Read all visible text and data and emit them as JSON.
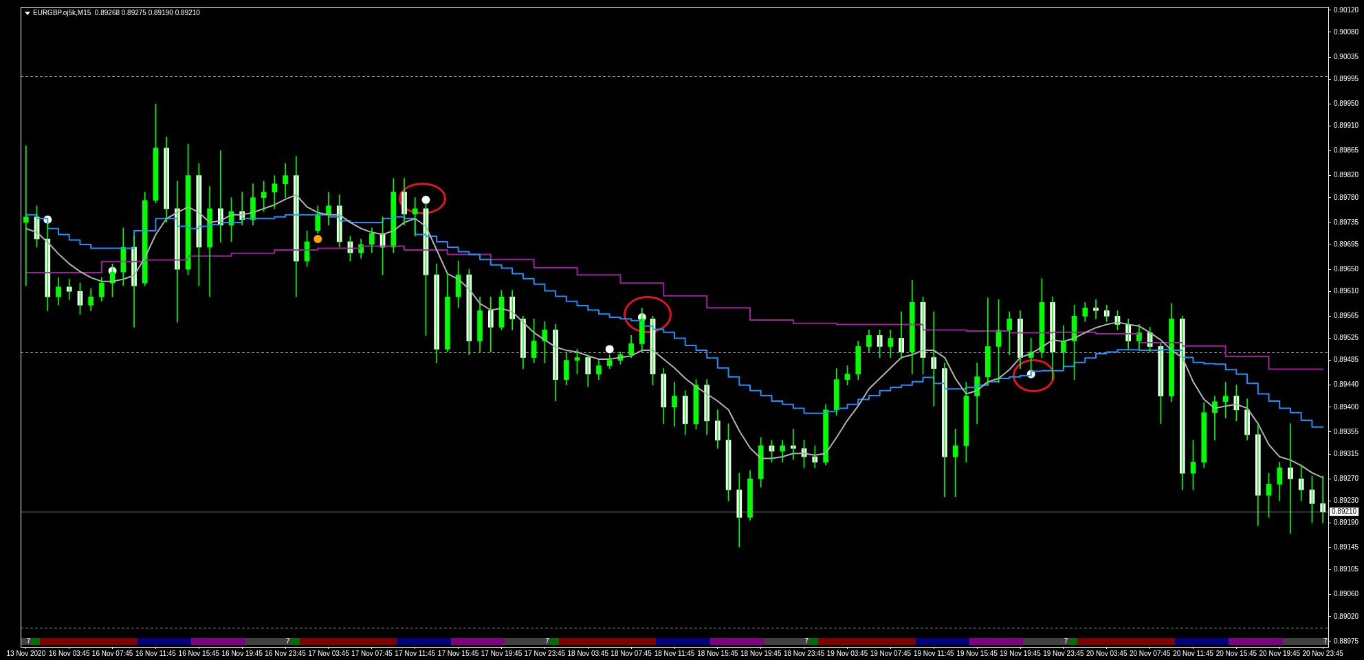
{
  "chart_data": {
    "type": "candlestick",
    "title": "EURGBP.oj5k,M15  0.89268 0.89275 0.89190 0.89210",
    "categories": [
      "13 Nov 2020",
      null,
      null,
      null,
      "16 Nov 03:45",
      null,
      null,
      null,
      "16 Nov 07:45",
      null,
      null,
      null,
      "16 Nov 11:45",
      null,
      null,
      null,
      "16 Nov 15:45",
      null,
      null,
      null,
      "16 Nov 19:45",
      null,
      null,
      null,
      "16 Nov 23:45",
      null,
      null,
      null,
      "17 Nov 03:45",
      null,
      null,
      null,
      "17 Nov 07:45",
      null,
      null,
      null,
      "17 Nov 11:45",
      null,
      null,
      null,
      "17 Nov 15:45",
      null,
      null,
      null,
      "17 Nov 19:45",
      null,
      null,
      null,
      "17 Nov 23:45",
      null,
      null,
      null,
      "18 Nov 03:45",
      null,
      null,
      null,
      "18 Nov 07:45",
      null,
      null,
      null,
      "18 Nov 11:45",
      null,
      null,
      null,
      "18 Nov 15:45",
      null,
      null,
      null,
      "18 Nov 19:45",
      null,
      null,
      null,
      "18 Nov 23:45",
      null,
      null,
      null,
      "19 Nov 03:45",
      null,
      null,
      null,
      "19 Nov 07:45",
      null,
      null,
      null,
      "19 Nov 11:45",
      null,
      null,
      null,
      "19 Nov 15:45",
      null,
      null,
      null,
      "19 Nov 19:45",
      null,
      null,
      null,
      "19 Nov 23:45",
      null,
      null,
      null,
      "20 Nov 03:45",
      null,
      null,
      null,
      "20 Nov 07:45",
      null,
      null,
      null,
      "20 Nov 11:45",
      null,
      null,
      null,
      "20 Nov 15:45",
      null,
      null,
      null,
      "20 Nov 19:45",
      null,
      null,
      null,
      "20 Nov 23:45"
    ],
    "ohlc": [
      [
        0.89735,
        0.89874,
        0.8962,
        0.89745
      ],
      [
        0.89745,
        0.89765,
        0.8969,
        0.89705
      ],
      [
        0.89705,
        0.89735,
        0.89575,
        0.896
      ],
      [
        0.896,
        0.89635,
        0.89585,
        0.89618
      ],
      [
        0.89618,
        0.89632,
        0.89595,
        0.8961
      ],
      [
        0.8961,
        0.89625,
        0.89568,
        0.89585
      ],
      [
        0.89585,
        0.89615,
        0.89575,
        0.896
      ],
      [
        0.896,
        0.89635,
        0.89592,
        0.89625
      ],
      [
        0.89625,
        0.8966,
        0.896,
        0.89645
      ],
      [
        0.89645,
        0.89725,
        0.8962,
        0.8969
      ],
      [
        0.8969,
        0.8971,
        0.89545,
        0.8962
      ],
      [
        0.89625,
        0.8979,
        0.8962,
        0.89775
      ],
      [
        0.89775,
        0.8995,
        0.8977,
        0.8987
      ],
      [
        0.8987,
        0.8989,
        0.89735,
        0.8976
      ],
      [
        0.8976,
        0.8981,
        0.89554,
        0.8965
      ],
      [
        0.8965,
        0.89877,
        0.8964,
        0.8982
      ],
      [
        0.8982,
        0.89842,
        0.8962,
        0.8969
      ],
      [
        0.8969,
        0.898,
        0.896,
        0.8976
      ],
      [
        0.8976,
        0.89865,
        0.89699,
        0.8973
      ],
      [
        0.8973,
        0.8978,
        0.897,
        0.89755
      ],
      [
        0.89755,
        0.8979,
        0.8973,
        0.8974
      ],
      [
        0.8974,
        0.89805,
        0.8973,
        0.8978
      ],
      [
        0.8978,
        0.8981,
        0.89755,
        0.8979
      ],
      [
        0.8979,
        0.8982,
        0.8976,
        0.89805
      ],
      [
        0.89805,
        0.89842,
        0.8978,
        0.8982
      ],
      [
        0.8982,
        0.89855,
        0.896,
        0.89665
      ],
      [
        0.89665,
        0.8972,
        0.89655,
        0.897
      ],
      [
        0.8972,
        0.89765,
        0.89715,
        0.8975
      ],
      [
        0.8975,
        0.8979,
        0.8973,
        0.89765
      ],
      [
        0.89765,
        0.89785,
        0.8969,
        0.897
      ],
      [
        0.897,
        0.8971,
        0.89665,
        0.8968
      ],
      [
        0.8968,
        0.89705,
        0.8967,
        0.89695
      ],
      [
        0.89695,
        0.89725,
        0.8968,
        0.89715
      ],
      [
        0.89715,
        0.89745,
        0.8964,
        0.8969
      ],
      [
        0.8969,
        0.89815,
        0.8968,
        0.8979
      ],
      [
        0.8979,
        0.89815,
        0.8973,
        0.8975
      ],
      [
        0.8975,
        0.8978,
        0.8971,
        0.8976
      ],
      [
        0.8976,
        0.8977,
        0.8953,
        0.8964
      ],
      [
        0.8964,
        0.8966,
        0.8948,
        0.89505
      ],
      [
        0.89505,
        0.8964,
        0.895,
        0.896
      ],
      [
        0.896,
        0.89665,
        0.8958,
        0.8964
      ],
      [
        0.8964,
        0.8965,
        0.89495,
        0.8952
      ],
      [
        0.8952,
        0.896,
        0.895,
        0.89575
      ],
      [
        0.89575,
        0.896,
        0.895,
        0.89545
      ],
      [
        0.89545,
        0.89612,
        0.8954,
        0.896
      ],
      [
        0.896,
        0.89612,
        0.8954,
        0.8956
      ],
      [
        0.8956,
        0.89565,
        0.8947,
        0.8949
      ],
      [
        0.8949,
        0.8956,
        0.8948,
        0.8952
      ],
      [
        0.8952,
        0.89555,
        0.8948,
        0.8954
      ],
      [
        0.8954,
        0.8955,
        0.89411,
        0.8945
      ],
      [
        0.8945,
        0.895,
        0.8944,
        0.89485
      ],
      [
        0.89485,
        0.89505,
        0.8946,
        0.8949
      ],
      [
        0.8949,
        0.89495,
        0.89437,
        0.8946
      ],
      [
        0.8946,
        0.89485,
        0.8945,
        0.89475
      ],
      [
        0.89475,
        0.89495,
        0.8947,
        0.89485
      ],
      [
        0.89485,
        0.895,
        0.89478,
        0.89495
      ],
      [
        0.89495,
        0.8953,
        0.8949,
        0.89515
      ],
      [
        0.89515,
        0.8958,
        0.895,
        0.8956
      ],
      [
        0.8956,
        0.89565,
        0.8944,
        0.8946
      ],
      [
        0.8946,
        0.8947,
        0.8937,
        0.894
      ],
      [
        0.894,
        0.89445,
        0.89365,
        0.8942
      ],
      [
        0.8942,
        0.8943,
        0.8935,
        0.8937
      ],
      [
        0.8937,
        0.8945,
        0.8936,
        0.8944
      ],
      [
        0.8944,
        0.8945,
        0.8935,
        0.89375
      ],
      [
        0.89375,
        0.89395,
        0.89325,
        0.8934
      ],
      [
        0.8934,
        0.8937,
        0.8923,
        0.8925
      ],
      [
        0.8925,
        0.8928,
        0.89146,
        0.892
      ],
      [
        0.892,
        0.89285,
        0.89195,
        0.8927
      ],
      [
        0.8927,
        0.89345,
        0.89255,
        0.8933
      ],
      [
        0.8933,
        0.8934,
        0.893,
        0.8932
      ],
      [
        0.8932,
        0.8934,
        0.893,
        0.8933
      ],
      [
        0.8933,
        0.8936,
        0.89305,
        0.89325
      ],
      [
        0.89325,
        0.8934,
        0.8929,
        0.8931
      ],
      [
        0.8931,
        0.8933,
        0.8929,
        0.893
      ],
      [
        0.893,
        0.89405,
        0.89295,
        0.89395
      ],
      [
        0.89395,
        0.8947,
        0.89385,
        0.8945
      ],
      [
        0.8945,
        0.89475,
        0.8944,
        0.8946
      ],
      [
        0.8946,
        0.8952,
        0.8945,
        0.8951
      ],
      [
        0.8951,
        0.8954,
        0.895,
        0.8953
      ],
      [
        0.8953,
        0.8954,
        0.8949,
        0.8951
      ],
      [
        0.8951,
        0.8954,
        0.8949,
        0.89525
      ],
      [
        0.89525,
        0.89573,
        0.89488,
        0.895
      ],
      [
        0.895,
        0.8963,
        0.8946,
        0.8959
      ],
      [
        0.8959,
        0.896,
        0.8946,
        0.8949
      ],
      [
        0.8949,
        0.89573,
        0.89402,
        0.8947
      ],
      [
        0.8947,
        0.8948,
        0.89237,
        0.8931
      ],
      [
        0.8931,
        0.8936,
        0.89237,
        0.8933
      ],
      [
        0.8933,
        0.89445,
        0.893,
        0.8942
      ],
      [
        0.8942,
        0.8948,
        0.8937,
        0.89455
      ],
      [
        0.89455,
        0.89598,
        0.8944,
        0.8951
      ],
      [
        0.8951,
        0.89595,
        0.89445,
        0.8954
      ],
      [
        0.8954,
        0.89573,
        0.89495,
        0.8956
      ],
      [
        0.8956,
        0.89575,
        0.8947,
        0.8949
      ],
      [
        0.8949,
        0.89525,
        0.89465,
        0.895
      ],
      [
        0.895,
        0.89633,
        0.8949,
        0.8959
      ],
      [
        0.8959,
        0.896,
        0.8945,
        0.895
      ],
      [
        0.895,
        0.89548,
        0.8947,
        0.8952
      ],
      [
        0.8952,
        0.89585,
        0.8945,
        0.89565
      ],
      [
        0.89565,
        0.8959,
        0.89555,
        0.8958
      ],
      [
        0.8958,
        0.89595,
        0.8956,
        0.89575
      ],
      [
        0.89575,
        0.89585,
        0.89555,
        0.89565
      ],
      [
        0.89565,
        0.89575,
        0.8954,
        0.8955
      ],
      [
        0.8955,
        0.8956,
        0.89505,
        0.8952
      ],
      [
        0.8952,
        0.8955,
        0.89505,
        0.89535
      ],
      [
        0.89535,
        0.89545,
        0.895,
        0.8951
      ],
      [
        0.8951,
        0.89515,
        0.8937,
        0.8942
      ],
      [
        0.8942,
        0.89588,
        0.8941,
        0.8956
      ],
      [
        0.8956,
        0.89565,
        0.8925,
        0.8928
      ],
      [
        0.8928,
        0.8934,
        0.8925,
        0.893
      ],
      [
        0.893,
        0.89408,
        0.8929,
        0.8939
      ],
      [
        0.8939,
        0.8942,
        0.8934,
        0.8941
      ],
      [
        0.8941,
        0.89445,
        0.8938,
        0.8942
      ],
      [
        0.8942,
        0.8944,
        0.89375,
        0.89395
      ],
      [
        0.89395,
        0.89415,
        0.8934,
        0.8935
      ],
      [
        0.8935,
        0.8937,
        0.89185,
        0.8924
      ],
      [
        0.8924,
        0.8928,
        0.892,
        0.8926
      ],
      [
        0.8926,
        0.893,
        0.8923,
        0.8929
      ],
      [
        0.8929,
        0.8937,
        0.89171,
        0.8927
      ],
      [
        0.8927,
        0.89295,
        0.8923,
        0.8925
      ],
      [
        0.8925,
        0.89275,
        0.8919,
        0.89225
      ],
      [
        0.89225,
        0.89275,
        0.8919,
        0.8921
      ]
    ],
    "color": "#00ff00",
    "colors": [
      "#00ff00",
      "#ffffff",
      "#ffffff",
      "#00ff00",
      "#ffffff",
      "#ffffff",
      "#00ff00",
      "#00ff00",
      "#00ff00",
      "#00ff00",
      "#ffffff",
      "#00ff00",
      "#00ff00",
      "#ffffff",
      "#ffffff",
      "#00ff00",
      "#ffffff",
      "#00ff00",
      "#ffffff",
      "#00ff00",
      "#ffffff",
      "#00ff00",
      "#00ff00",
      "#00ff00",
      "#00ff00",
      "#ffffff",
      "#00ff00",
      "#00ff00",
      "#00ff00",
      "#ffffff",
      "#ffffff",
      "#00ff00",
      "#00ff00",
      "#ffffff",
      "#00ff00",
      "#ffffff",
      "#00ff00",
      "#ffffff",
      "#ffffff",
      "#00ff00",
      "#00ff00",
      "#ffffff",
      "#00ff00",
      "#ffffff",
      "#00ff00",
      "#ffffff",
      "#ffffff",
      "#00ff00",
      "#00ff00",
      "#ffffff",
      "#00ff00",
      "#00ff00",
      "#ffffff",
      "#00ff00",
      "#00ff00",
      "#00ff00",
      "#00ff00",
      "#00ff00",
      "#ffffff",
      "#ffffff",
      "#00ff00",
      "#ffffff",
      "#00ff00",
      "#ffffff",
      "#ffffff",
      "#ffffff",
      "#ffffff",
      "#00ff00",
      "#00ff00",
      "#ffffff",
      "#00ff00",
      "#ffffff",
      "#ffffff",
      "#ffffff",
      "#00ff00",
      "#00ff00",
      "#00ff00",
      "#00ff00",
      "#00ff00",
      "#ffffff",
      "#00ff00",
      "#ffffff",
      "#00ff00",
      "#ffffff",
      "#ffffff",
      "#ffffff",
      "#00ff00",
      "#00ff00",
      "#00ff00",
      "#00ff00",
      "#00ff00",
      "#00ff00",
      "#ffffff",
      "#00ff00",
      "#00ff00",
      "#ffffff",
      "#00ff00",
      "#00ff00",
      "#00ff00",
      "#ffffff",
      "#ffffff",
      "#ffffff",
      "#ffffff",
      "#00ff00",
      "#ffffff",
      "#ffffff",
      "#00ff00",
      "#ffffff",
      "#00ff00",
      "#00ff00",
      "#00ff00",
      "#00ff00",
      "#ffffff",
      "#ffffff",
      "#ffffff",
      "#00ff00",
      "#00ff00",
      "#ffffff",
      "#ffffff",
      "#ffffff",
      "#ffffff"
    ],
    "series": [
      {
        "type": "line",
        "color": "#b4b4b4",
        "values": [
          0.89724,
          0.89717,
          0.89699,
          0.89678,
          0.8966,
          0.89646,
          0.89635,
          0.89628,
          0.89628,
          0.89632,
          0.89639,
          0.89671,
          0.89713,
          0.89742,
          0.89753,
          0.89763,
          0.89753,
          0.89735,
          0.89738,
          0.89749,
          0.89749,
          0.89753,
          0.8976,
          0.89767,
          0.89777,
          0.89785,
          0.89763,
          0.89753,
          0.89749,
          0.89749,
          0.89735,
          0.89724,
          0.89717,
          0.89713,
          0.8972,
          0.89735,
          0.89742,
          0.89728,
          0.89685,
          0.89642,
          0.89632,
          0.89614,
          0.89588,
          0.89576,
          0.89579,
          0.89573,
          0.89554,
          0.89535,
          0.89522,
          0.89509,
          0.89503,
          0.895,
          0.89493,
          0.89487,
          0.89487,
          0.8949,
          0.89493,
          0.89503,
          0.89503,
          0.89487,
          0.89471,
          0.89452,
          0.89437,
          0.89424,
          0.89411,
          0.89395,
          0.89357,
          0.89326,
          0.89307,
          0.89307,
          0.8931,
          0.89316,
          0.89316,
          0.89313,
          0.89316,
          0.89345,
          0.89376,
          0.89402,
          0.89433,
          0.89452,
          0.89471,
          0.8949,
          0.89495,
          0.89503,
          0.89503,
          0.8949,
          0.89452,
          0.89424,
          0.8943,
          0.89446,
          0.89452,
          0.89468,
          0.8949,
          0.89497,
          0.89509,
          0.89522,
          0.89519,
          0.89525,
          0.89535,
          0.89544,
          0.8955,
          0.89554,
          0.8955,
          0.89547,
          0.89535,
          0.89522,
          0.89503,
          0.8949,
          0.89446,
          0.89414,
          0.89398,
          0.89402,
          0.89405,
          0.89398,
          0.8937,
          0.89332,
          0.8931,
          0.89304,
          0.89294,
          0.89281,
          0.89272
        ]
      },
      {
        "type": "step",
        "color": "#1e90ff",
        "values": [
          0.89749,
          0.89749,
          0.89742,
          0.89724,
          0.89713,
          0.89703,
          0.89695,
          0.89688,
          0.89688,
          0.89688,
          0.89688,
          0.8972,
          0.8972,
          0.89742,
          0.89742,
          0.89728,
          0.89724,
          0.89728,
          0.89731,
          0.89735,
          0.89735,
          0.89742,
          0.89742,
          0.89742,
          0.89745,
          0.89749,
          0.89749,
          0.89749,
          0.89749,
          0.89745,
          0.89738,
          0.89735,
          0.89735,
          0.89735,
          0.89742,
          0.89745,
          0.89742,
          0.89713,
          0.8971,
          0.897,
          0.8969,
          0.89682,
          0.89677,
          0.89668,
          0.89658,
          0.89652,
          0.89642,
          0.89633,
          0.89623,
          0.89611,
          0.89601,
          0.89592,
          0.89584,
          0.89576,
          0.89569,
          0.89563,
          0.8956,
          0.89557,
          0.89547,
          0.89541,
          0.89536,
          0.89525,
          0.89512,
          0.89503,
          0.89489,
          0.89471,
          0.89455,
          0.8944,
          0.8943,
          0.89421,
          0.89411,
          0.89405,
          0.89398,
          0.89389,
          0.89389,
          0.89392,
          0.89398,
          0.89405,
          0.89414,
          0.89421,
          0.8943,
          0.89436,
          0.8944,
          0.89446,
          0.89454,
          0.89443,
          0.89433,
          0.89433,
          0.89436,
          0.8944,
          0.89446,
          0.89452,
          0.89455,
          0.89457,
          0.89465,
          0.89466,
          0.89466,
          0.89474,
          0.89481,
          0.89489,
          0.89497,
          0.895,
          0.89504,
          0.89504,
          0.89503,
          0.89503,
          0.89504,
          0.89503,
          0.8949,
          0.89481,
          0.89479,
          0.89478,
          0.89468,
          0.8946,
          0.89443,
          0.89424,
          0.89411,
          0.89398,
          0.8939,
          0.89376,
          0.89364
        ]
      },
      {
        "type": "step",
        "color": "#a020a0",
        "values": [
          0.89644,
          0.89644,
          0.89644,
          0.89644,
          0.89644,
          0.89644,
          0.89644,
          0.89644,
          0.89664,
          0.89664,
          0.89664,
          0.89664,
          0.89667,
          0.89667,
          0.89667,
          0.89667,
          0.89674,
          0.89674,
          0.89674,
          0.89674,
          0.89679,
          0.89679,
          0.89679,
          0.89679,
          0.89685,
          0.89685,
          0.89685,
          0.89685,
          0.89688,
          0.89688,
          0.89688,
          0.89688,
          0.89692,
          0.89692,
          0.89692,
          0.89692,
          0.89685,
          0.89685,
          0.89685,
          0.89685,
          0.89677,
          0.89677,
          0.89677,
          0.89677,
          0.89668,
          0.89668,
          0.89668,
          0.89668,
          0.89653,
          0.89653,
          0.89653,
          0.89653,
          0.8964,
          0.8964,
          0.8964,
          0.8964,
          0.89625,
          0.89625,
          0.89625,
          0.89625,
          0.89602,
          0.89602,
          0.89602,
          0.89602,
          0.8958,
          0.8958,
          0.8958,
          0.8958,
          0.89558,
          0.89558,
          0.89558,
          0.89558,
          0.89552,
          0.89552,
          0.89552,
          0.89552,
          0.8955,
          0.8955,
          0.8955,
          0.8955,
          0.8955,
          0.8955,
          0.8955,
          0.8955,
          0.8954,
          0.8954,
          0.8954,
          0.8954,
          0.89538,
          0.89538,
          0.89538,
          0.89538,
          0.89535,
          0.89535,
          0.89535,
          0.89535,
          0.89536,
          0.89536,
          0.89536,
          0.89536,
          0.89533,
          0.89533,
          0.89533,
          0.89533,
          0.89517,
          0.89517,
          0.89517,
          0.89517,
          0.89511,
          0.89511,
          0.89511,
          0.89511,
          0.89492,
          0.89492,
          0.89492,
          0.89492,
          0.89469,
          0.89469,
          0.89469,
          0.89469,
          0.89469
        ]
      },
      {
        "type": "scatter",
        "color": "#ffffff",
        "marker": "circle",
        "values": [
          null,
          null,
          0.8974,
          null,
          null,
          null,
          null,
          null,
          0.89647,
          null,
          null,
          null,
          null,
          null,
          null,
          null,
          null,
          null,
          null,
          null,
          null,
          null,
          null,
          null,
          null,
          null,
          null,
          null,
          null,
          null,
          null,
          null,
          null,
          null,
          null,
          null,
          null,
          0.89776,
          null,
          null,
          null,
          null,
          null,
          null,
          null,
          null,
          null,
          null,
          null,
          null,
          null,
          null,
          null,
          null,
          0.89505,
          null,
          null,
          0.89563,
          null,
          null,
          null,
          null,
          null,
          null,
          null,
          null,
          null,
          null,
          null,
          null,
          null,
          null,
          null,
          null,
          null,
          null,
          null,
          null,
          null,
          null,
          null,
          null,
          null,
          null,
          null,
          null,
          null,
          null,
          null,
          null,
          null,
          null,
          null,
          0.8946,
          null,
          null,
          null,
          null,
          null,
          null,
          null,
          null,
          null,
          null,
          null,
          null,
          null,
          null,
          null,
          null,
          null,
          null,
          null,
          null,
          null,
          null,
          null,
          null,
          null,
          null,
          null
        ]
      },
      {
        "type": "scatter",
        "color": "#ffa500",
        "marker": "circle",
        "values": [
          null,
          null,
          null,
          null,
          null,
          null,
          null,
          null,
          null,
          null,
          null,
          null,
          null,
          null,
          null,
          null,
          null,
          null,
          null,
          null,
          null,
          null,
          null,
          null,
          null,
          null,
          null,
          0.89705,
          null,
          null,
          null,
          null,
          null,
          null,
          null,
          null,
          null,
          null,
          null,
          null,
          null,
          null,
          null,
          null,
          null,
          null,
          null,
          null,
          null,
          null,
          null,
          null,
          null,
          null,
          null,
          null,
          null,
          null,
          null,
          null,
          null,
          null,
          null,
          null,
          null,
          null,
          null,
          null,
          null,
          null,
          null,
          null,
          null,
          null,
          null,
          null,
          null,
          null,
          null,
          null,
          null,
          null,
          null,
          null,
          null,
          null,
          null,
          null,
          null,
          null,
          null,
          null,
          null,
          null,
          null,
          null,
          null,
          null,
          null,
          null,
          null,
          null,
          null,
          null,
          null,
          null,
          null,
          null,
          null,
          null,
          null,
          null,
          null,
          null,
          null,
          null,
          null,
          null,
          null,
          null,
          null
        ]
      }
    ],
    "ylim": [
      0.88965,
      0.90126
    ],
    "yticks": [
      {
        "value": 0.9012,
        "label": "0.90120"
      },
      {
        "value": 0.9008,
        "label": "0.90080"
      },
      {
        "value": 0.90035,
        "label": "0.90035"
      },
      {
        "value": 0.89995,
        "label": "0.89995"
      },
      {
        "value": 0.8995,
        "label": "0.89950"
      },
      {
        "value": 0.8991,
        "label": "0.89910"
      },
      {
        "value": 0.89865,
        "label": "0.89865"
      },
      {
        "value": 0.8982,
        "label": "0.89820"
      },
      {
        "value": 0.8978,
        "label": "0.89780"
      },
      {
        "value": 0.89735,
        "label": "0.89735"
      },
      {
        "value": 0.89695,
        "label": "0.89695"
      },
      {
        "value": 0.8965,
        "label": "0.89650"
      },
      {
        "value": 0.8961,
        "label": "0.89610"
      },
      {
        "value": 0.89565,
        "label": "0.89565"
      },
      {
        "value": 0.89525,
        "label": "0.89525"
      },
      {
        "value": 0.89485,
        "label": "0.89485"
      },
      {
        "value": 0.8944,
        "label": "0.89440"
      },
      {
        "value": 0.894,
        "label": "0.89400"
      },
      {
        "value": 0.89355,
        "label": "0.89355"
      },
      {
        "value": 0.89315,
        "label": "0.89315"
      },
      {
        "value": 0.8927,
        "label": "0.89270"
      },
      {
        "value": 0.8923,
        "label": "0.89230"
      },
      {
        "value": 0.8919,
        "label": "0.89190"
      },
      {
        "value": 0.89145,
        "label": "0.89145"
      },
      {
        "value": 0.89105,
        "label": "0.89105"
      },
      {
        "value": 0.8906,
        "label": "0.89060"
      },
      {
        "value": 0.8902,
        "label": "0.89020"
      },
      {
        "value": 0.88975,
        "label": "0.88975"
      }
    ],
    "ref_lines": [
      {
        "axis": "y",
        "value": 0.9,
        "color": "#969696",
        "line_style": "dashed"
      },
      {
        "axis": "y",
        "value": 0.895,
        "color": "#969696",
        "line_style": "dashed"
      },
      {
        "axis": "y",
        "value": 0.89,
        "color": "#969696",
        "line_style": "dashed"
      },
      {
        "axis": "y",
        "value": 0.8921,
        "label": "0.89210",
        "color": "#778899"
      }
    ],
    "annotations": [
      "7",
      "7",
      "7",
      "7",
      "7",
      "7"
    ]
  }
}
